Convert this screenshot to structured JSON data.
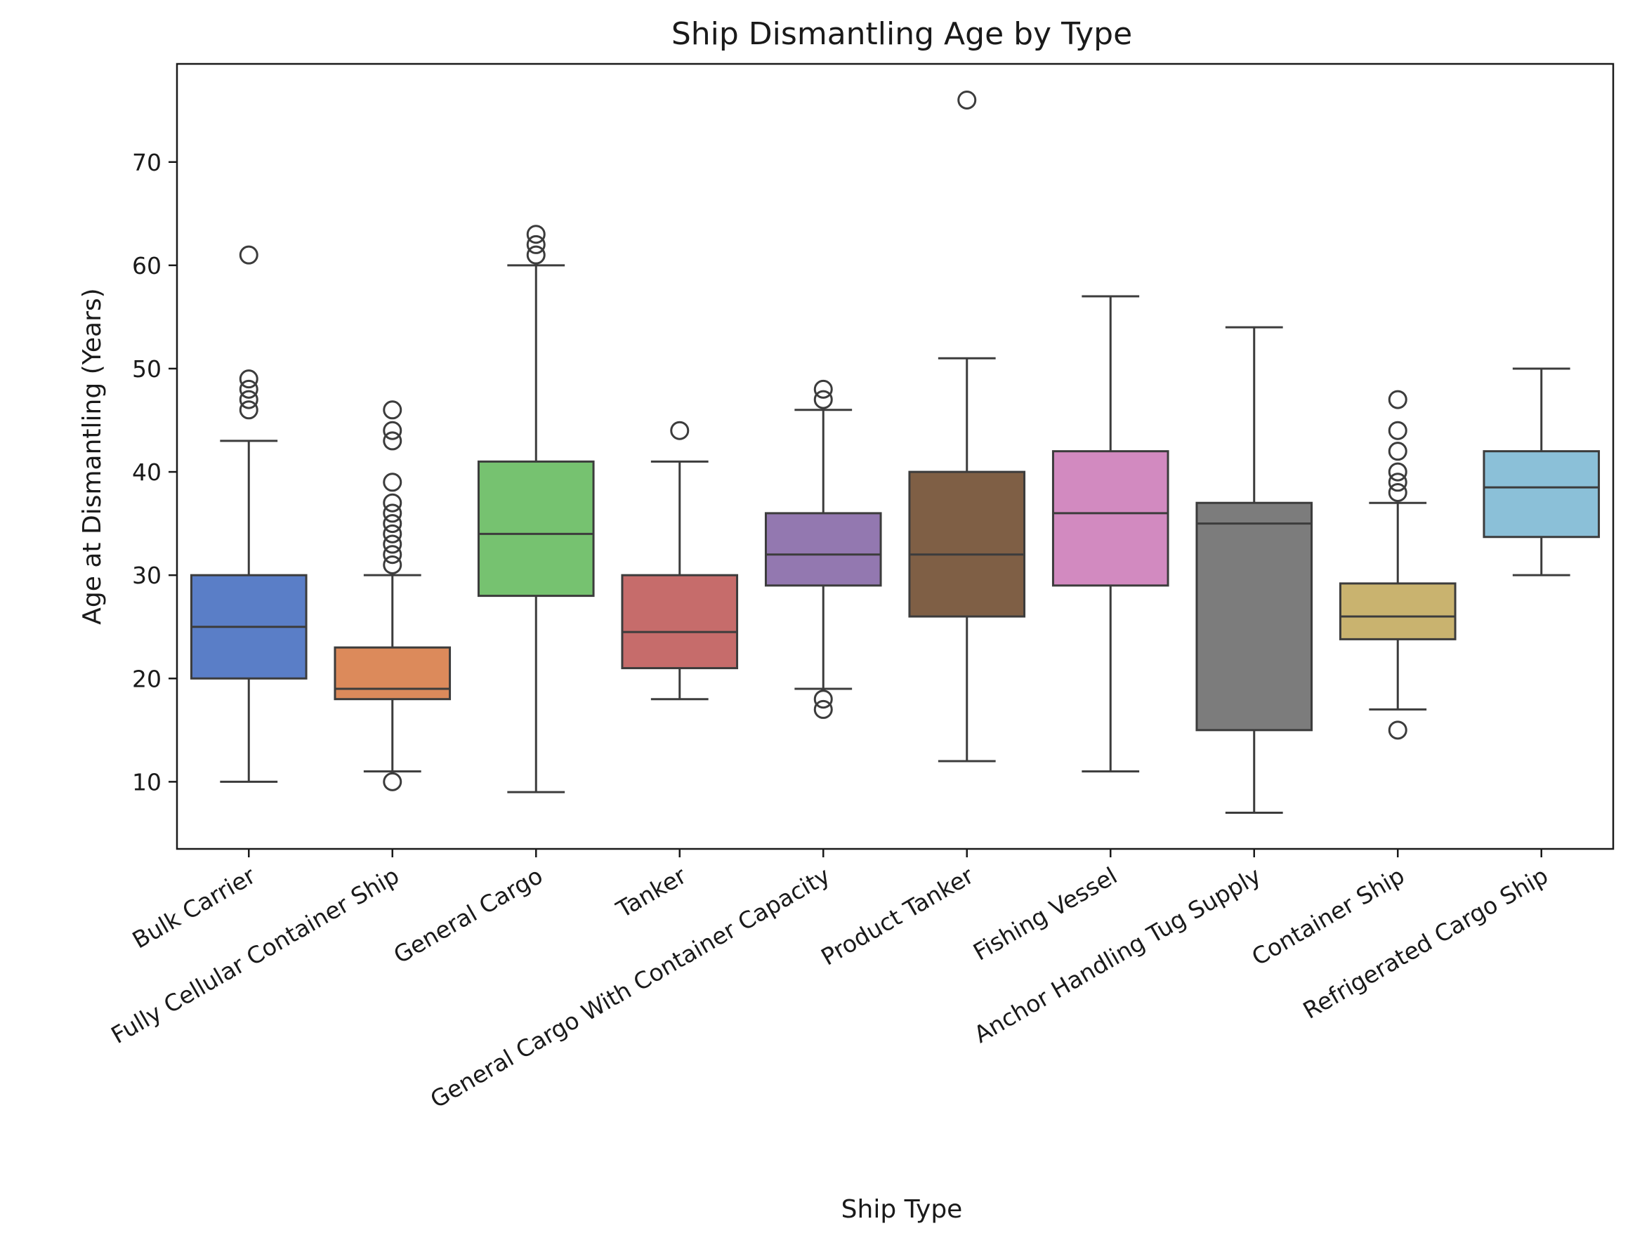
{
  "chart_data": {
    "type": "box",
    "title": "Ship Dismantling Age by Type",
    "xlabel": "Ship Type",
    "ylabel": "Age at Dismantling (Years)",
    "ylim": [
      3.5,
      79.5
    ],
    "yticks": [
      10,
      20,
      30,
      40,
      50,
      60,
      70
    ],
    "grid": false,
    "legend": "none",
    "categories": [
      "Bulk Carrier",
      "Fully Cellular Container Ship",
      "General Cargo",
      "Tanker",
      "General Cargo With Container Capacity",
      "Product Tanker",
      "Fishing Vessel",
      "Anchor Handling Tug Supply",
      "Container Ship",
      "Refrigerated Cargo Ship"
    ],
    "boxes": [
      {
        "category": "Bulk Carrier",
        "whisker_low": 10,
        "q1": 20,
        "median": 25,
        "q3": 30,
        "whisker_high": 43,
        "outliers": [
          46,
          47,
          48,
          49,
          61
        ],
        "color": "#5a7ec7"
      },
      {
        "category": "Fully Cellular Container Ship",
        "whisker_low": 11,
        "q1": 18,
        "median": 19,
        "q3": 23,
        "whisker_high": 30,
        "outliers": [
          10,
          31,
          32,
          33,
          34,
          35,
          36,
          37,
          39,
          43,
          44,
          46
        ],
        "color": "#dc8a5b"
      },
      {
        "category": "General Cargo",
        "whisker_low": 9,
        "q1": 28,
        "median": 34,
        "q3": 41,
        "whisker_high": 60,
        "outliers": [
          61,
          62,
          63
        ],
        "color": "#76c270"
      },
      {
        "category": "Tanker",
        "whisker_low": 18,
        "q1": 21,
        "median": 24.5,
        "q3": 30,
        "whisker_high": 41,
        "outliers": [
          44
        ],
        "color": "#c66c6b"
      },
      {
        "category": "General Cargo With Container Capacity",
        "whisker_low": 19,
        "q1": 29,
        "median": 32,
        "q3": 36,
        "whisker_high": 46,
        "outliers": [
          17,
          18,
          47,
          48
        ],
        "color": "#9378b0"
      },
      {
        "category": "Product Tanker",
        "whisker_low": 12,
        "q1": 26,
        "median": 32,
        "q3": 40,
        "whisker_high": 51,
        "outliers": [
          76
        ],
        "color": "#7f5f45"
      },
      {
        "category": "Fishing Vessel",
        "whisker_low": 11,
        "q1": 29,
        "median": 36,
        "q3": 42,
        "whisker_high": 57,
        "outliers": [],
        "color": "#d28ac0"
      },
      {
        "category": "Anchor Handling Tug Supply",
        "whisker_low": 7,
        "q1": 15,
        "median": 35,
        "q3": 37,
        "whisker_high": 54,
        "outliers": [],
        "color": "#7c7c7c"
      },
      {
        "category": "Container Ship",
        "whisker_low": 17,
        "q1": 23.8,
        "median": 26,
        "q3": 29.2,
        "whisker_high": 37,
        "outliers": [
          15,
          38,
          39,
          40,
          42,
          44,
          47
        ],
        "color": "#c9b36f"
      },
      {
        "category": "Refrigerated Cargo Ship",
        "whisker_low": 30,
        "q1": 33.7,
        "median": 38.5,
        "q3": 42,
        "whisker_high": 50,
        "outliers": [],
        "color": "#8bc0d8"
      }
    ]
  }
}
